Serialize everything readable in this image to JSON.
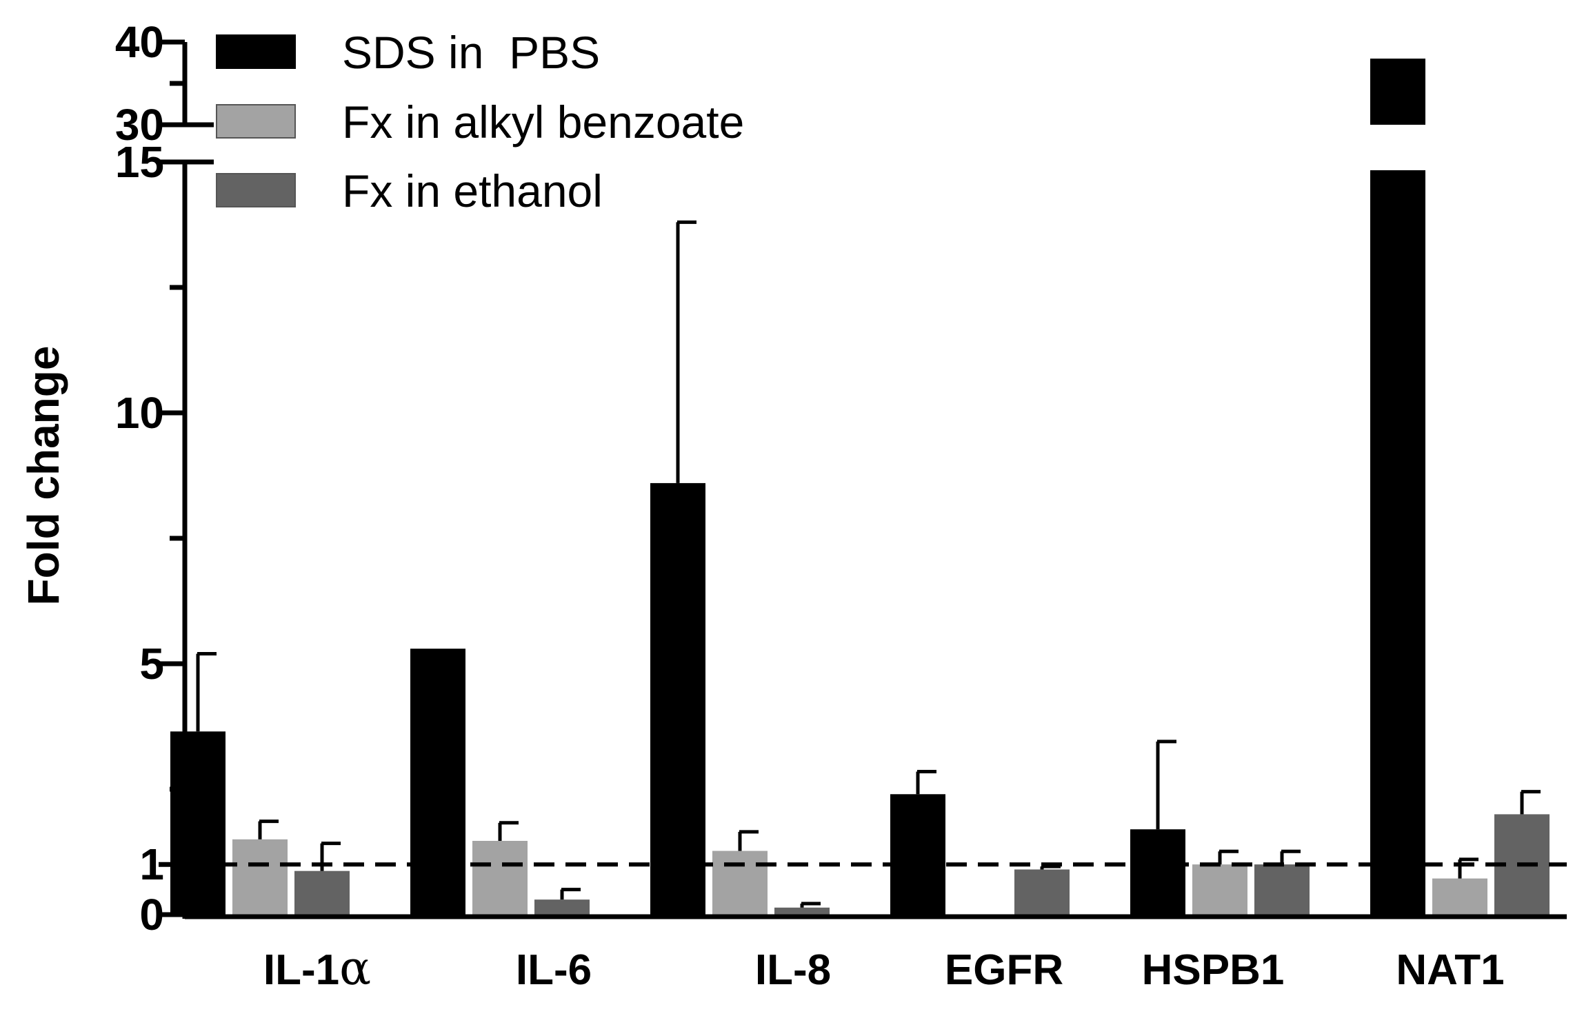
{
  "chart_data": {
    "type": "bar",
    "title": "",
    "xlabel": "",
    "ylabel": "Fold change",
    "categories": [
      "IL-1",
      "IL-6",
      "IL-8",
      "EGFR",
      "HSPB1",
      "NAT1"
    ],
    "category_suffix_symbols": [
      "α",
      "",
      "",
      "",
      "",
      ""
    ],
    "ylim_lower": [
      0,
      15
    ],
    "ylim_upper": [
      30,
      40
    ],
    "yticks_lower": [
      0,
      1,
      5,
      10,
      15
    ],
    "yticks_lower_minor": [
      2.5,
      7.5,
      12.5
    ],
    "yticks_upper": [
      30,
      40
    ],
    "yticks_upper_minor": [
      35
    ],
    "reference_line": 1,
    "legend_position": "top-left",
    "series": [
      {
        "name": "SDS in  PBS",
        "color": "#000000",
        "values": [
          3.65,
          5.3,
          8.6,
          2.4,
          1.7,
          38.0
        ],
        "errors": [
          1.55,
          0,
          5.2,
          0.45,
          1.75,
          0
        ]
      },
      {
        "name": "Fx in alkyl benzoate",
        "color": "#a3a3a3",
        "values": [
          1.5,
          1.47,
          1.27,
          null,
          1.0,
          0.72
        ],
        "errors": [
          0.36,
          0.36,
          0.38,
          null,
          0.26,
          0.38
        ]
      },
      {
        "name": "Fx in ethanol",
        "color": "#636363",
        "values": [
          0.87,
          0.3,
          0.14,
          0.9,
          1.0,
          2.0
        ],
        "errors": [
          0.55,
          0.2,
          0.08,
          0.06,
          0.26,
          0.45
        ]
      }
    ]
  }
}
